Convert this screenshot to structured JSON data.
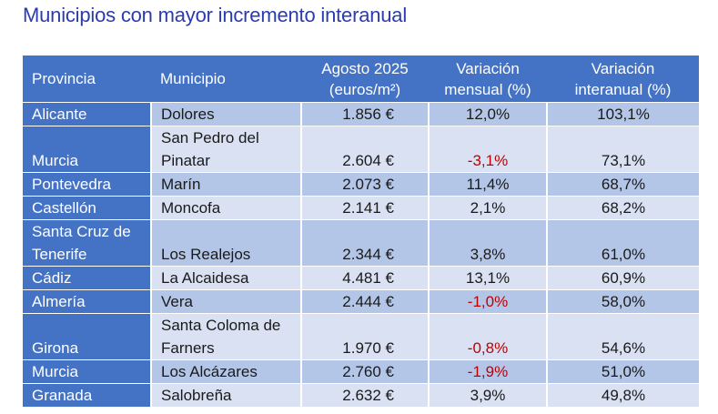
{
  "title": "Municipios con mayor incremento interanual",
  "headers": {
    "provincia": "Provincia",
    "municipio": "Municipio",
    "precio_line1": "Agosto 2025",
    "precio_line2": "(euros/m²)",
    "mensual_line1": "Variación",
    "mensual_line2": "mensual (%)",
    "interanual_line1": "Variación",
    "interanual_line2": "interanual (%)"
  },
  "rows": [
    {
      "provincia": "Alicante",
      "municipio": "Dolores",
      "precio": "1.856 €",
      "mensual": "12,0%",
      "interanual": "103,1%"
    },
    {
      "provincia": "Murcia",
      "municipio": "San Pedro del Pinatar",
      "precio": "2.604 €",
      "mensual": "-3,1%",
      "interanual": "73,1%"
    },
    {
      "provincia": "Pontevedra",
      "municipio": "Marín",
      "precio": "2.073 €",
      "mensual": "11,4%",
      "interanual": "68,7%"
    },
    {
      "provincia": "Castellón",
      "municipio": "Moncofa",
      "precio": "2.141 €",
      "mensual": "2,1%",
      "interanual": "68,2%"
    },
    {
      "provincia": "Santa Cruz de Tenerife",
      "municipio": "Los Realejos",
      "precio": "2.344 €",
      "mensual": "3,8%",
      "interanual": "61,0%"
    },
    {
      "provincia": "Cádiz",
      "municipio": "La Alcaidesa",
      "precio": "4.481 €",
      "mensual": "13,1%",
      "interanual": "60,9%"
    },
    {
      "provincia": "Almería",
      "municipio": "Vera",
      "precio": "2.444 €",
      "mensual": "-1,0%",
      "interanual": "58,0%"
    },
    {
      "provincia": "Girona",
      "municipio": "Santa Coloma de Farners",
      "precio": "1.970 €",
      "mensual": "-0,8%",
      "interanual": "54,6%"
    },
    {
      "provincia": "Murcia",
      "municipio": "Los Alcázares",
      "precio": "2.760 €",
      "mensual": "-1,9%",
      "interanual": "51,0%"
    },
    {
      "provincia": "Granada",
      "municipio": "Salobreña",
      "precio": "2.632 €",
      "mensual": "3,9%",
      "interanual": "49,8%"
    }
  ],
  "colors": {
    "header_bg": "#4472c4",
    "row_dark": "#b4c6e7",
    "row_light": "#d9e1f2",
    "negative": "#c00000",
    "title": "#2b3bb0"
  }
}
